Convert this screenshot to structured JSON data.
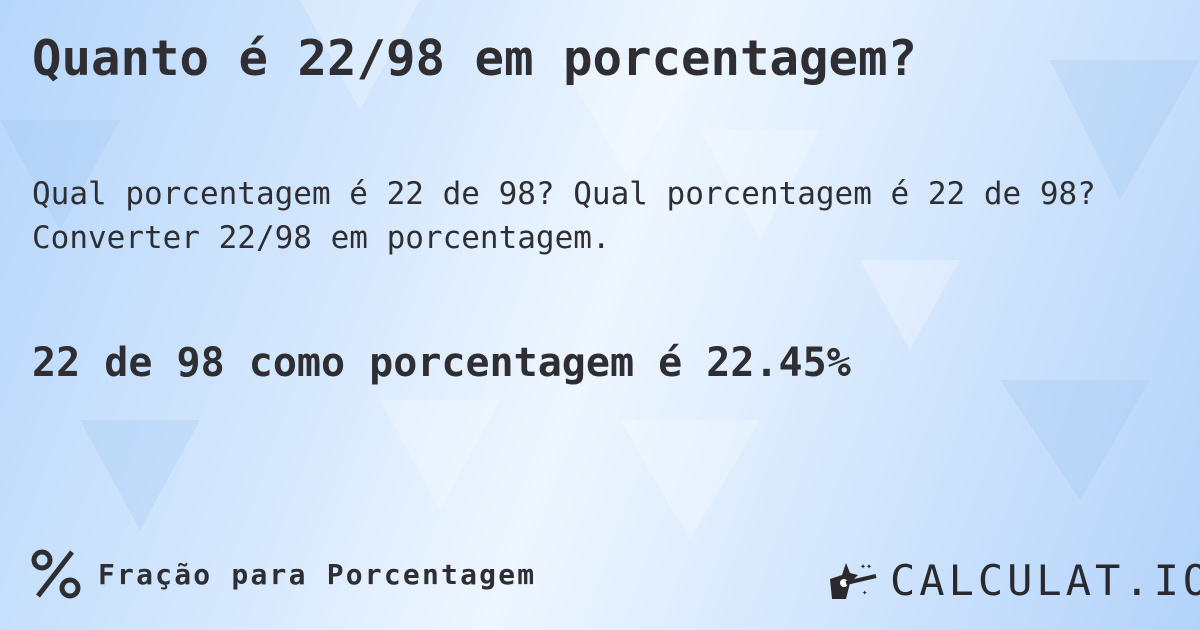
{
  "title": "Quanto é 22/98 em porcentagem?",
  "subtitle": "Qual porcentagem é 22 de 98? Qual porcentagem é 22 de 98? Converter 22/98 em porcentagem.",
  "result": "22 de 98 como porcentagem é 22.45%",
  "footer": {
    "icon": "percent-icon",
    "label": "Fração para Porcentagem"
  },
  "logo": {
    "text": "CALCULAT.IO",
    "icon": "magic-hand-icon"
  }
}
